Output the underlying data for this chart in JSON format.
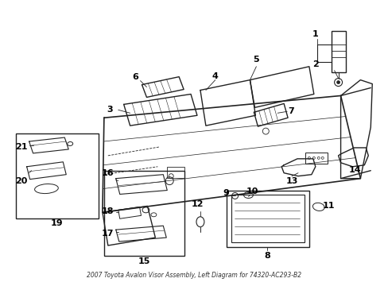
{
  "title": "2007 Toyota Avalon Visor Assembly, Left Diagram for 74320-AC293-B2",
  "background_color": "#ffffff",
  "fig_width": 4.89,
  "fig_height": 3.6,
  "dpi": 100,
  "line_color": "#222222",
  "label_color": "#000000"
}
